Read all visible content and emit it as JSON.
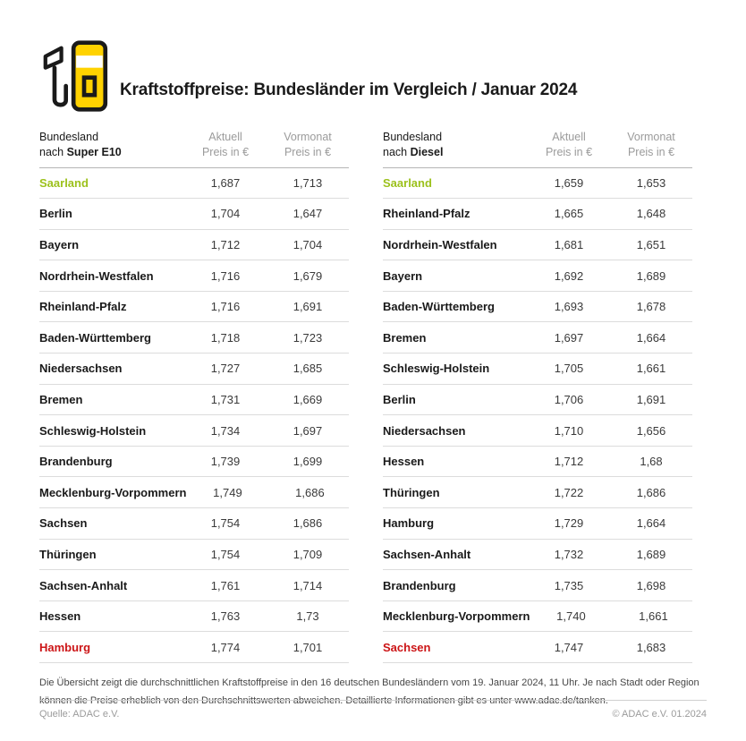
{
  "header": {
    "title": "Kraftstoffpreise: Bundesländer im Vergleich / Januar 2024",
    "icon": "fuel-pump-icon"
  },
  "colors": {
    "accent_green": "#9cc11c",
    "accent_red": "#cc1517",
    "brand_yellow": "#ffd200",
    "header_gray": "#9b9b9b"
  },
  "tables": [
    {
      "name_header": {
        "line1": "Bundesland",
        "prefix": "nach",
        "fuel": "Super E10"
      },
      "col_aktuell": {
        "line1": "Aktuell",
        "line2": "Preis in €"
      },
      "col_vormonat": {
        "line1": "Vormonat",
        "line2": "Preis in €"
      },
      "rows": [
        {
          "state": "Saarland",
          "aktuell": "1,687",
          "vormonat": "1,713",
          "highlight": "green"
        },
        {
          "state": "Berlin",
          "aktuell": "1,704",
          "vormonat": "1,647"
        },
        {
          "state": "Bayern",
          "aktuell": "1,712",
          "vormonat": "1,704"
        },
        {
          "state": "Nordrhein-Westfalen",
          "aktuell": "1,716",
          "vormonat": "1,679"
        },
        {
          "state": "Rheinland-Pfalz",
          "aktuell": "1,716",
          "vormonat": "1,691"
        },
        {
          "state": "Baden-Württemberg",
          "aktuell": "1,718",
          "vormonat": "1,723"
        },
        {
          "state": "Niedersachsen",
          "aktuell": "1,727",
          "vormonat": "1,685"
        },
        {
          "state": "Bremen",
          "aktuell": "1,731",
          "vormonat": "1,669"
        },
        {
          "state": "Schleswig-Holstein",
          "aktuell": "1,734",
          "vormonat": "1,697"
        },
        {
          "state": "Brandenburg",
          "aktuell": "1,739",
          "vormonat": "1,699"
        },
        {
          "state": "Mecklenburg-Vorpommern",
          "aktuell": "1,749",
          "vormonat": "1,686"
        },
        {
          "state": "Sachsen",
          "aktuell": "1,754",
          "vormonat": "1,686"
        },
        {
          "state": "Thüringen",
          "aktuell": "1,754",
          "vormonat": "1,709"
        },
        {
          "state": "Sachsen-Anhalt",
          "aktuell": "1,761",
          "vormonat": "1,714"
        },
        {
          "state": "Hessen",
          "aktuell": "1,763",
          "vormonat": "1,73"
        },
        {
          "state": "Hamburg",
          "aktuell": "1,774",
          "vormonat": "1,701",
          "highlight": "red"
        }
      ]
    },
    {
      "name_header": {
        "line1": "Bundesland",
        "prefix": "nach",
        "fuel": "Diesel"
      },
      "col_aktuell": {
        "line1": "Aktuell",
        "line2": "Preis in €"
      },
      "col_vormonat": {
        "line1": "Vormonat",
        "line2": "Preis in €"
      },
      "rows": [
        {
          "state": "Saarland",
          "aktuell": "1,659",
          "vormonat": "1,653",
          "highlight": "green"
        },
        {
          "state": "Rheinland-Pfalz",
          "aktuell": "1,665",
          "vormonat": "1,648"
        },
        {
          "state": "Nordrhein-Westfalen",
          "aktuell": "1,681",
          "vormonat": "1,651"
        },
        {
          "state": "Bayern",
          "aktuell": "1,692",
          "vormonat": "1,689"
        },
        {
          "state": "Baden-Württemberg",
          "aktuell": "1,693",
          "vormonat": "1,678"
        },
        {
          "state": "Bremen",
          "aktuell": "1,697",
          "vormonat": "1,664"
        },
        {
          "state": "Schleswig-Holstein",
          "aktuell": "1,705",
          "vormonat": "1,661"
        },
        {
          "state": "Berlin",
          "aktuell": "1,706",
          "vormonat": "1,691"
        },
        {
          "state": "Niedersachsen",
          "aktuell": "1,710",
          "vormonat": "1,656"
        },
        {
          "state": "Hessen",
          "aktuell": "1,712",
          "vormonat": "1,68"
        },
        {
          "state": "Thüringen",
          "aktuell": "1,722",
          "vormonat": "1,686"
        },
        {
          "state": "Hamburg",
          "aktuell": "1,729",
          "vormonat": "1,664"
        },
        {
          "state": "Sachsen-Anhalt",
          "aktuell": "1,732",
          "vormonat": "1,689"
        },
        {
          "state": "Brandenburg",
          "aktuell": "1,735",
          "vormonat": "1,698"
        },
        {
          "state": "Mecklenburg-Vorpommern",
          "aktuell": "1,740",
          "vormonat": "1,661"
        },
        {
          "state": "Sachsen",
          "aktuell": "1,747",
          "vormonat": "1,683",
          "highlight": "red"
        }
      ]
    }
  ],
  "footnote": {
    "text": "Die Übersicht zeigt die durchschnittlichen Kraftstoffpreise in den 16 deutschen Bundesländern vom 19. Januar 2024, 11 Uhr. Je nach Stadt oder Region können die Preise erheblich von den Durchschnittswerten abweichen. Detaillierte Informationen gibt es unter www.adac.de/tanken."
  },
  "source": {
    "left": "Quelle: ADAC e.V.",
    "right": "© ADAC e.V. 01.2024"
  },
  "chart_data": [
    {
      "type": "table",
      "title": "Bundesland nach Super E10 — Preis in €",
      "columns": [
        "Bundesland",
        "Aktuell Preis in €",
        "Vormonat Preis in €"
      ],
      "rows": [
        [
          "Saarland",
          1.687,
          1.713
        ],
        [
          "Berlin",
          1.704,
          1.647
        ],
        [
          "Bayern",
          1.712,
          1.704
        ],
        [
          "Nordrhein-Westfalen",
          1.716,
          1.679
        ],
        [
          "Rheinland-Pfalz",
          1.716,
          1.691
        ],
        [
          "Baden-Württemberg",
          1.718,
          1.723
        ],
        [
          "Niedersachsen",
          1.727,
          1.685
        ],
        [
          "Bremen",
          1.731,
          1.669
        ],
        [
          "Schleswig-Holstein",
          1.734,
          1.697
        ],
        [
          "Brandenburg",
          1.739,
          1.699
        ],
        [
          "Mecklenburg-Vorpommern",
          1.749,
          1.686
        ],
        [
          "Sachsen",
          1.754,
          1.686
        ],
        [
          "Thüringen",
          1.754,
          1.709
        ],
        [
          "Sachsen-Anhalt",
          1.761,
          1.714
        ],
        [
          "Hessen",
          1.763,
          1.73
        ],
        [
          "Hamburg",
          1.774,
          1.701
        ]
      ],
      "annotations": {
        "cheapest": "Saarland (grün)",
        "most_expensive": "Hamburg (rot)"
      }
    },
    {
      "type": "table",
      "title": "Bundesland nach Diesel — Preis in €",
      "columns": [
        "Bundesland",
        "Aktuell Preis in €",
        "Vormonat Preis in €"
      ],
      "rows": [
        [
          "Saarland",
          1.659,
          1.653
        ],
        [
          "Rheinland-Pfalz",
          1.665,
          1.648
        ],
        [
          "Nordrhein-Westfalen",
          1.681,
          1.651
        ],
        [
          "Bayern",
          1.692,
          1.689
        ],
        [
          "Baden-Württemberg",
          1.693,
          1.678
        ],
        [
          "Bremen",
          1.697,
          1.664
        ],
        [
          "Schleswig-Holstein",
          1.705,
          1.661
        ],
        [
          "Berlin",
          1.706,
          1.691
        ],
        [
          "Niedersachsen",
          1.71,
          1.656
        ],
        [
          "Hessen",
          1.712,
          1.68
        ],
        [
          "Thüringen",
          1.722,
          1.686
        ],
        [
          "Hamburg",
          1.729,
          1.664
        ],
        [
          "Sachsen-Anhalt",
          1.732,
          1.689
        ],
        [
          "Brandenburg",
          1.735,
          1.698
        ],
        [
          "Mecklenburg-Vorpommern",
          1.74,
          1.661
        ],
        [
          "Sachsen",
          1.747,
          1.683
        ]
      ],
      "annotations": {
        "cheapest": "Saarland (grün)",
        "most_expensive": "Sachsen (rot)"
      }
    }
  ]
}
